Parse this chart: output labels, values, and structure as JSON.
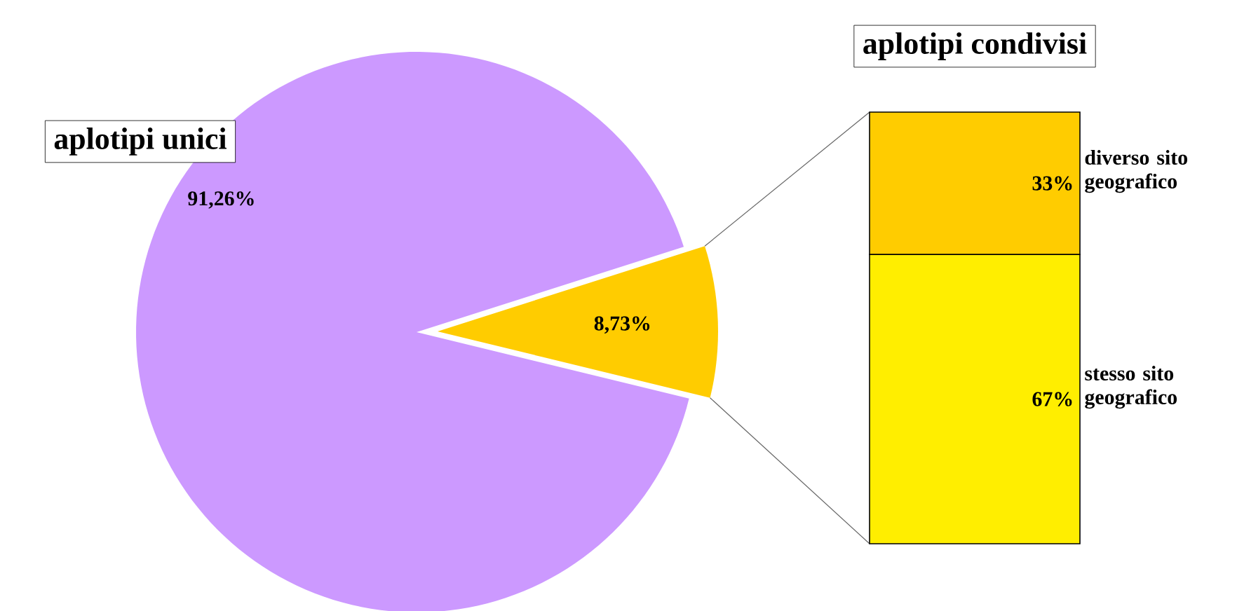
{
  "chart_data": [
    {
      "type": "pie",
      "categories": [
        "aplotipi unici",
        null
      ],
      "values": [
        91.26,
        8.73
      ],
      "colors": [
        "#cc99ff",
        "#ffcc00"
      ],
      "value_labels": [
        "91,26%",
        "8,73%"
      ]
    },
    {
      "type": "bar",
      "title": "aplotipi condivisi",
      "stacked": true,
      "categories": [
        null
      ],
      "series": [
        {
          "name": "stesso sito geografico",
          "color": "#ffee00",
          "values": [
            67
          ],
          "value_labels": [
            "67%"
          ]
        },
        {
          "name": "diverso sito geografico",
          "color": "#ffcc00",
          "values": [
            33
          ],
          "value_labels": [
            "33%"
          ]
        }
      ]
    }
  ]
}
